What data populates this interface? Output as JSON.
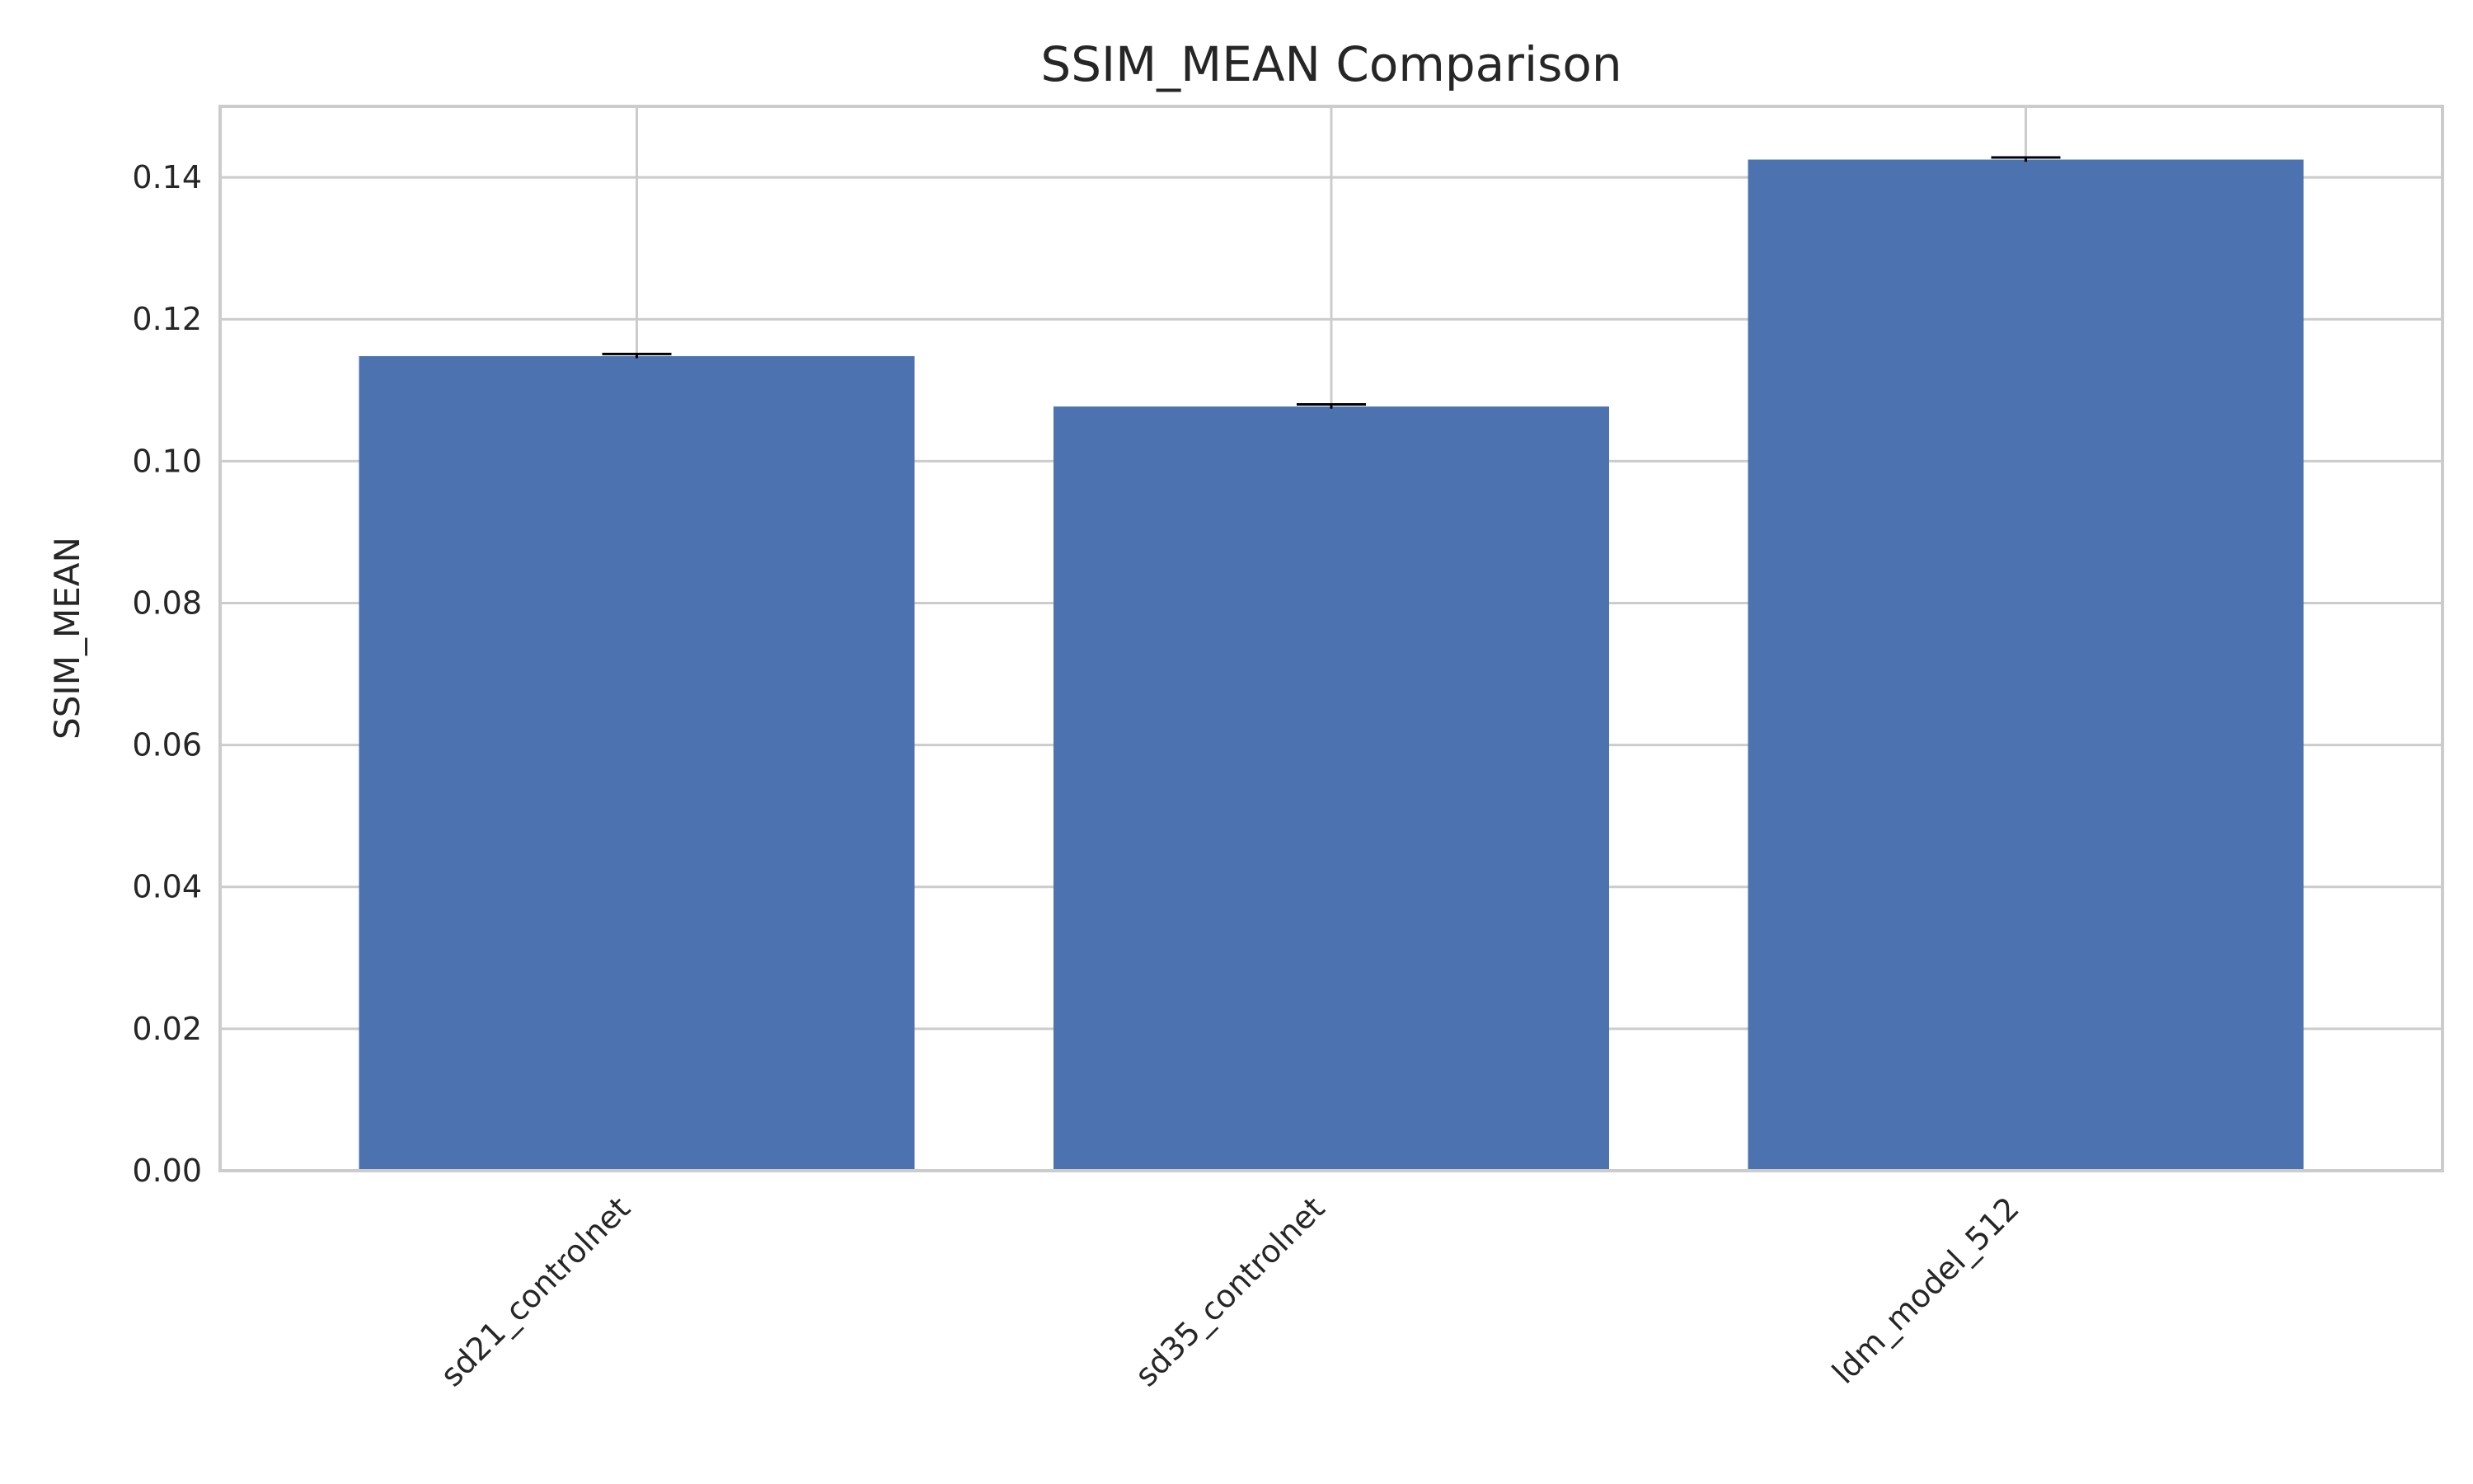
{
  "chart_data": {
    "type": "bar",
    "title": "SSIM_MEAN Comparison",
    "xlabel": "",
    "ylabel": "SSIM_MEAN",
    "categories": [
      "sd21_controlnet",
      "sd35_controlnet",
      "ldm_model_512"
    ],
    "values": [
      0.1148,
      0.1077,
      0.1425
    ],
    "error": [
      0.0003,
      0.0003,
      0.0003
    ],
    "ylim": [
      0,
      0.15
    ],
    "yticks": [
      "0.00",
      "0.02",
      "0.04",
      "0.06",
      "0.08",
      "0.10",
      "0.12",
      "0.14"
    ],
    "ytick_values": [
      0,
      0.02,
      0.04,
      0.06,
      0.08,
      0.1,
      0.12,
      0.14
    ],
    "grid": true,
    "legend": "none",
    "colors": {
      "bar": "#4c72b0",
      "grid": "#cccccc",
      "text": "#262626",
      "errorbar": "#000000"
    }
  }
}
